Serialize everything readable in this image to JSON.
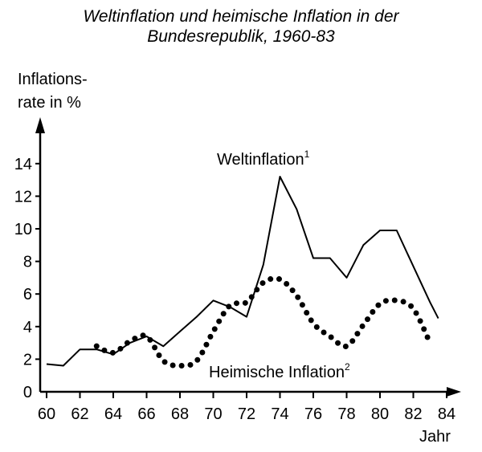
{
  "chart_data": {
    "type": "line",
    "title": "Weltinflation und heimische Inflation in der Bundesrepublik, 1960-83",
    "title_line1": "Weltinflation und heimische Inflation in der",
    "title_line2": "Bundesrepublik, 1960-83",
    "ylabel_line1": "Inflations-",
    "ylabel_line2": "rate in %",
    "xlabel": "Jahr",
    "xlim": [
      60,
      85
    ],
    "ylim": [
      0,
      15
    ],
    "x_ticks": [
      "60",
      "62",
      "64",
      "66",
      "68",
      "70",
      "72",
      "74",
      "76",
      "78",
      "80",
      "82",
      "84"
    ],
    "y_ticks": [
      "0",
      "2",
      "4",
      "6",
      "8",
      "10",
      "12",
      "14"
    ],
    "grid": false,
    "series": [
      {
        "name": "Weltinflation",
        "name_superscript": "1",
        "style": "solid",
        "points": [
          [
            60,
            1.7
          ],
          [
            61,
            1.6
          ],
          [
            62,
            2.6
          ],
          [
            63,
            2.6
          ],
          [
            64,
            2.3
          ],
          [
            65,
            3.0
          ],
          [
            66,
            3.4
          ],
          [
            67,
            2.8
          ],
          [
            68,
            3.7
          ],
          [
            69,
            4.6
          ],
          [
            70,
            5.6
          ],
          [
            71,
            5.2
          ],
          [
            72,
            4.6
          ],
          [
            73,
            7.8
          ],
          [
            74,
            13.2
          ],
          [
            75,
            11.2
          ],
          [
            76,
            8.2
          ],
          [
            77,
            8.2
          ],
          [
            78,
            7.0
          ],
          [
            79,
            9.0
          ],
          [
            80,
            9.9
          ],
          [
            81,
            9.9
          ],
          [
            82,
            7.7
          ],
          [
            83,
            5.5
          ],
          [
            83.5,
            4.5
          ]
        ]
      },
      {
        "name": "Heimische Inflation",
        "name_superscript": "2",
        "style": "dotted",
        "points": [
          [
            63,
            2.8
          ],
          [
            64,
            2.4
          ],
          [
            65,
            3.1
          ],
          [
            66,
            3.4
          ],
          [
            67,
            1.9
          ],
          [
            68,
            1.6
          ],
          [
            69,
            1.9
          ],
          [
            70,
            3.7
          ],
          [
            71,
            5.3
          ],
          [
            72,
            5.5
          ],
          [
            73,
            6.7
          ],
          [
            74,
            6.9
          ],
          [
            75,
            5.9
          ],
          [
            76,
            4.2
          ],
          [
            77,
            3.4
          ],
          [
            78,
            2.8
          ],
          [
            79,
            4.1
          ],
          [
            80,
            5.4
          ],
          [
            81,
            5.6
          ],
          [
            82,
            5.1
          ],
          [
            83,
            3.0
          ]
        ]
      }
    ]
  }
}
